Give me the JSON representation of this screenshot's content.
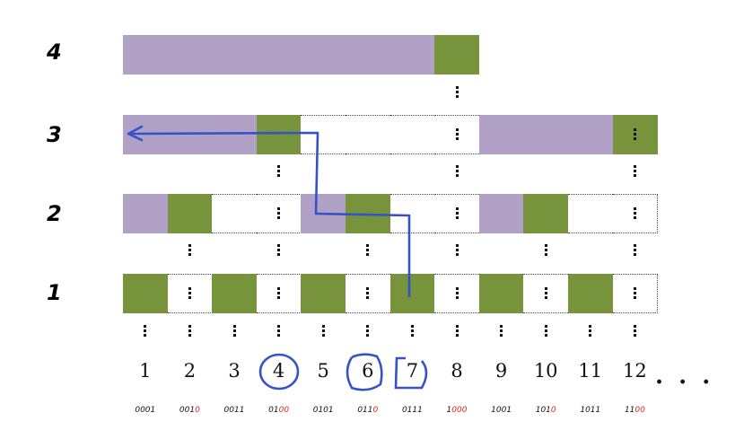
{
  "row_labels": [
    "4",
    "3",
    "2",
    "1"
  ],
  "numbers": [
    "1",
    "2",
    "3",
    "4",
    "5",
    "6",
    "7",
    "8",
    "9",
    "10",
    "11",
    "12"
  ],
  "binaries": [
    {
      "prefix": "0001",
      "suffix": ""
    },
    {
      "prefix": "001",
      "suffix": "0"
    },
    {
      "prefix": "0011",
      "suffix": ""
    },
    {
      "prefix": "01",
      "suffix": "00"
    },
    {
      "prefix": "0101",
      "suffix": ""
    },
    {
      "prefix": "011",
      "suffix": "0"
    },
    {
      "prefix": "0111",
      "suffix": ""
    },
    {
      "prefix": "1",
      "suffix": "000"
    },
    {
      "prefix": "1001",
      "suffix": ""
    },
    {
      "prefix": "101",
      "suffix": "0"
    },
    {
      "prefix": "1011",
      "suffix": ""
    },
    {
      "prefix": "11",
      "suffix": "00"
    }
  ],
  "ellipsis": ". . .",
  "circled_numbers": [
    "4",
    "6",
    "7"
  ],
  "levels": [
    {
      "label": "4",
      "cells": [
        "P",
        "P",
        "P",
        "P",
        "P",
        "P",
        "P",
        "G"
      ]
    },
    {
      "label": "3",
      "cells": [
        "P",
        "P",
        "P",
        "G",
        "E",
        "E",
        "E",
        "E",
        "P",
        "P",
        "P",
        "G"
      ]
    },
    {
      "label": "2",
      "cells": [
        "P",
        "G",
        "E",
        "E",
        "P",
        "G",
        "E",
        "E",
        "P",
        "G",
        "E",
        "E"
      ]
    },
    {
      "label": "1",
      "cells": [
        "G",
        "E",
        "G",
        "E",
        "G",
        "E",
        "G",
        "E",
        "G",
        "E",
        "G",
        "E"
      ]
    }
  ],
  "colors": {
    "purple": "#b1a1c7",
    "green": "#77933c",
    "path": "#3552c8",
    "highlight": "#dd2222"
  }
}
